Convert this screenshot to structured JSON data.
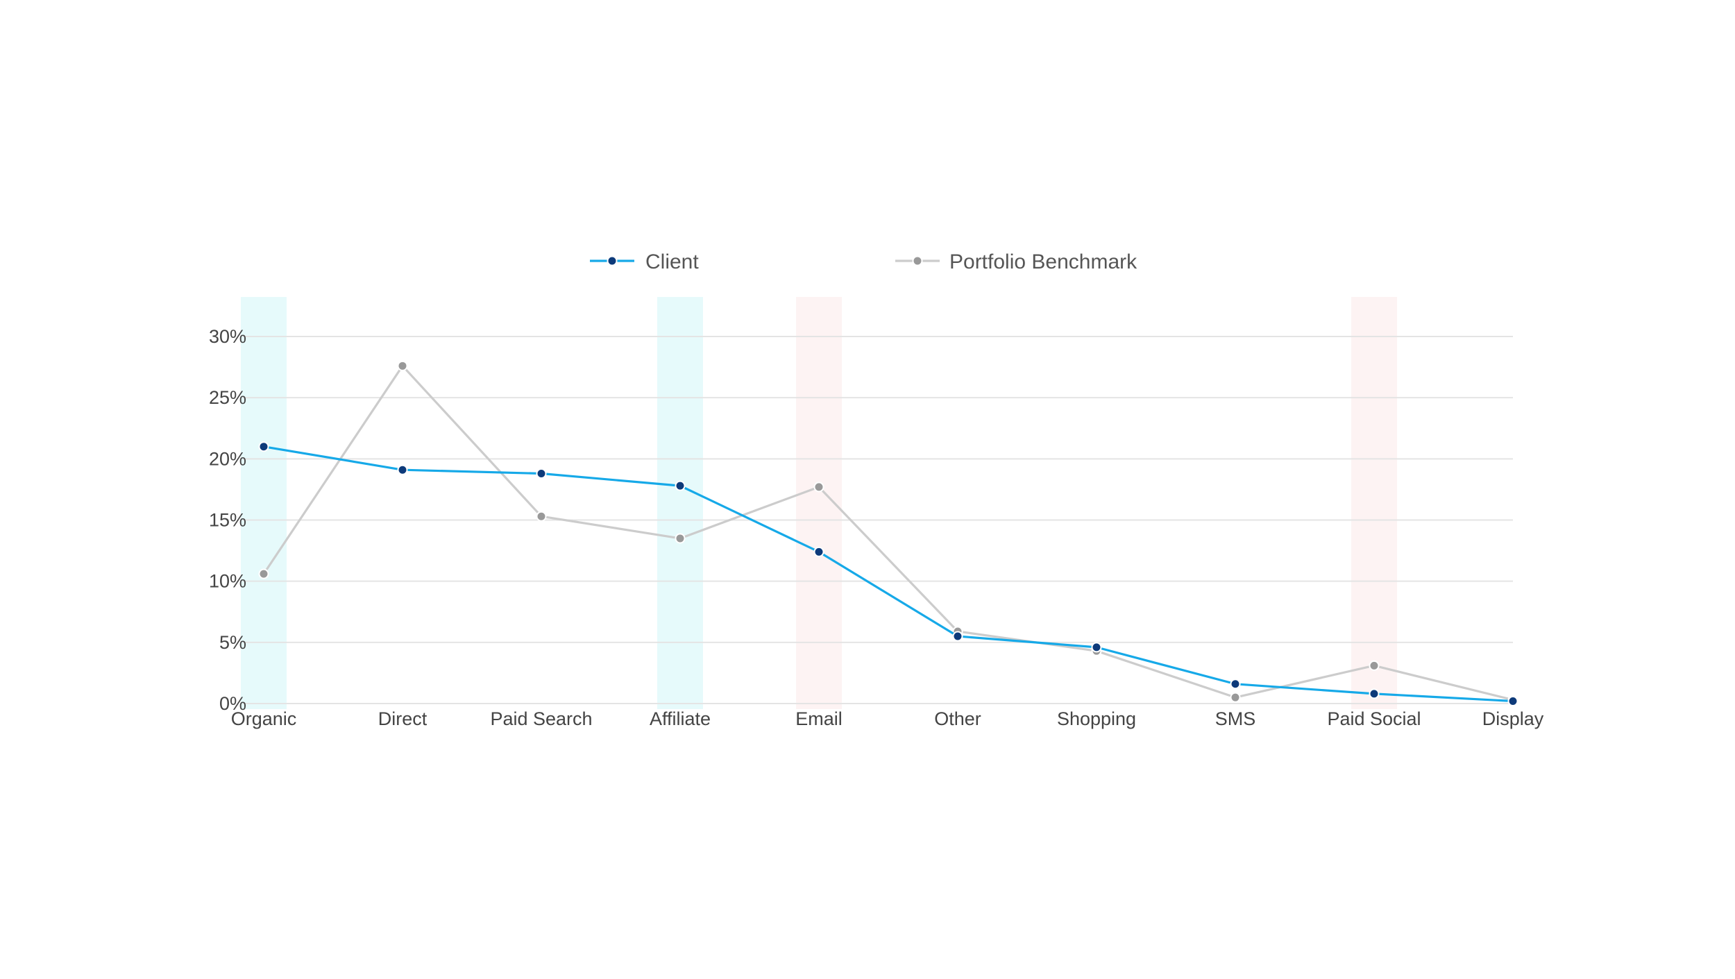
{
  "chart_data": {
    "type": "line",
    "categories": [
      "Organic",
      "Direct",
      "Paid Search",
      "Affiliate",
      "Email",
      "Other",
      "Shopping",
      "SMS",
      "Paid Social",
      "Display"
    ],
    "series": [
      {
        "name": "Client",
        "values": [
          21.0,
          19.1,
          18.8,
          17.8,
          12.4,
          5.5,
          4.6,
          1.6,
          0.8,
          0.2
        ],
        "color": "#16a9e8",
        "marker_color": "#0d3a7a"
      },
      {
        "name": "Portfolio Benchmark",
        "values": [
          10.6,
          27.6,
          15.3,
          13.5,
          17.7,
          5.9,
          4.3,
          0.5,
          3.1,
          0.3
        ],
        "color": "#cccccc",
        "marker_color": "#999999"
      }
    ],
    "highlights": [
      {
        "category": "Organic",
        "color": "#e6fafb"
      },
      {
        "category": "Affiliate",
        "color": "#e6fafb"
      },
      {
        "category": "Email",
        "color": "#fdf3f3"
      },
      {
        "category": "Paid Social",
        "color": "#fdf3f3"
      }
    ],
    "y_ticks": [
      "0%",
      "5%",
      "10%",
      "15%",
      "20%",
      "25%",
      "30%"
    ],
    "ylim": [
      0,
      30
    ],
    "y_step": 5,
    "grid": true,
    "legend_position": "top-center",
    "title": "",
    "xlabel": "",
    "ylabel": ""
  }
}
